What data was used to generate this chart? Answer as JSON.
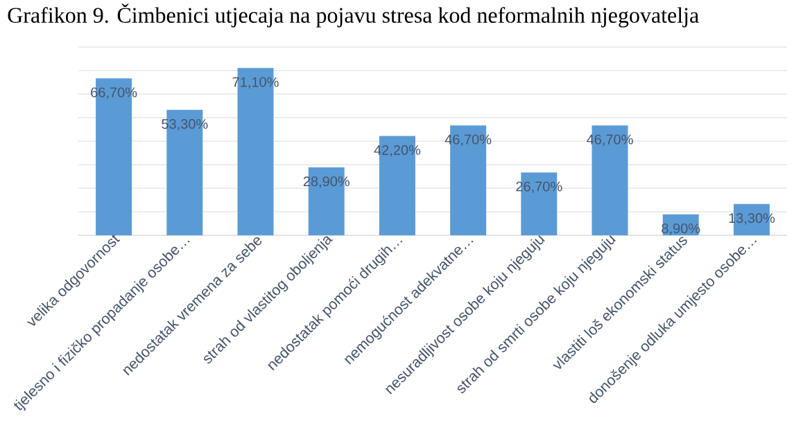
{
  "chart_data": {
    "type": "bar",
    "title": "Grafikon 9. Čimbenici utjecaja na pojavu stresa kod neformalnih njegovatelja",
    "categories": [
      "velika odgovornost",
      "tjelesno i fizičko propadanje osobe…",
      "nedostatak vremena za sebe",
      "strah od vlastitog oboljenja",
      "nedostatak pomoći drugih…",
      "nemogućnost adekvatne…",
      "nesuradljivost osobe koju njeguju",
      "strah od smrti osobe koju njeguju",
      "vlastiti loš ekonomski status",
      "donošenje odluka umjesto osobe…"
    ],
    "values": [
      66.7,
      53.3,
      71.1,
      28.9,
      42.2,
      46.7,
      26.7,
      46.7,
      8.9,
      13.3
    ],
    "value_labels": [
      "66,70%",
      "53,30%",
      "71,10%",
      "28,90%",
      "42,20%",
      "46,70%",
      "26,70%",
      "46,70%",
      "8,90%",
      "13,30%"
    ],
    "color": "#5b9bd5",
    "ylim": [
      0,
      80
    ],
    "yticks": [
      {
        "value": 0,
        "label": null
      },
      {
        "value": 10,
        "label": null
      },
      {
        "value": 20,
        "label": null
      },
      {
        "value": 30,
        "label": null
      },
      {
        "value": 40,
        "label": null
      },
      {
        "value": 50,
        "label": null
      },
      {
        "value": 60,
        "label": null
      },
      {
        "value": 70,
        "label": null
      },
      {
        "value": 80,
        "label": null
      }
    ],
    "grid": "y",
    "tick_labels": "x"
  }
}
